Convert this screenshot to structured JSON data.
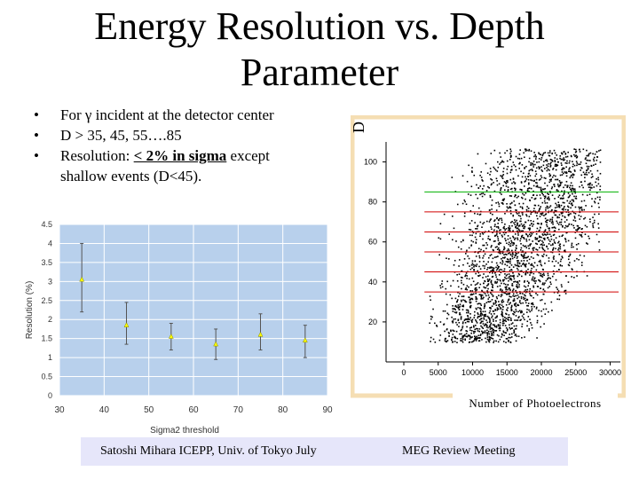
{
  "slide": {
    "title_line1": "Energy Resolution vs. Depth",
    "title_line2": "Parameter",
    "bullets": [
      {
        "text": "For γ incident at the detector center"
      },
      {
        "text": " D > 35, 45, 55….85"
      },
      {
        "pre": " Resolution: ",
        "underlined": "< 2% in sigma",
        "post": " except",
        "cont": "shallow events (D<45)."
      }
    ],
    "footer_left": "Satoshi Mihara ICEPP, Univ. of Tokyo July",
    "footer_right": "MEG Review Meeting"
  },
  "chart_data": [
    {
      "type": "scatter",
      "xlabel": "Sigma2 threshold",
      "ylabel": "Resolution (%)",
      "xlim": [
        30,
        90
      ],
      "ylim": [
        0,
        4.5
      ],
      "x_ticks": [
        "30",
        "40",
        "50",
        "60",
        "70",
        "80",
        "90"
      ],
      "y_ticks": [
        "0",
        "0.5",
        "1",
        "1.5",
        "2",
        "2.5",
        "3",
        "3.5",
        "4",
        "4.5"
      ],
      "grid": true,
      "background": "#b8d0ec",
      "point_color": "#ffff00",
      "points": [
        {
          "x": 35,
          "y": 3.05,
          "err_lo": 2.2,
          "err_hi": 4.0
        },
        {
          "x": 45,
          "y": 1.85,
          "err_lo": 1.35,
          "err_hi": 2.45
        },
        {
          "x": 55,
          "y": 1.55,
          "err_lo": 1.2,
          "err_hi": 1.9
        },
        {
          "x": 65,
          "y": 1.35,
          "err_lo": 0.95,
          "err_hi": 1.75
        },
        {
          "x": 75,
          "y": 1.6,
          "err_lo": 1.2,
          "err_hi": 2.15
        },
        {
          "x": 85,
          "y": 1.45,
          "err_lo": 1.0,
          "err_hi": 1.85
        }
      ]
    },
    {
      "type": "scatter",
      "xlabel": "Number of Photoelectrons",
      "ylabel": "D",
      "xlim": [
        0,
        32000
      ],
      "ylim": [
        0,
        110
      ],
      "x_ticks": [
        "0",
        "5000",
        "10000",
        "15000",
        "20000",
        "25000",
        "30000"
      ],
      "y_ticks": [
        "20",
        "40",
        "60",
        "80",
        "100"
      ],
      "grid": false,
      "frame_color": "#f5deb3",
      "reference_lines": [
        {
          "y": 85,
          "color": "#00b000"
        },
        {
          "y": 75,
          "color": "#d00000"
        },
        {
          "y": 65,
          "color": "#d00000"
        },
        {
          "y": 55,
          "color": "#d00000"
        },
        {
          "y": 45,
          "color": "#d00000"
        },
        {
          "y": 35,
          "color": "#d00000"
        }
      ]
    }
  ]
}
